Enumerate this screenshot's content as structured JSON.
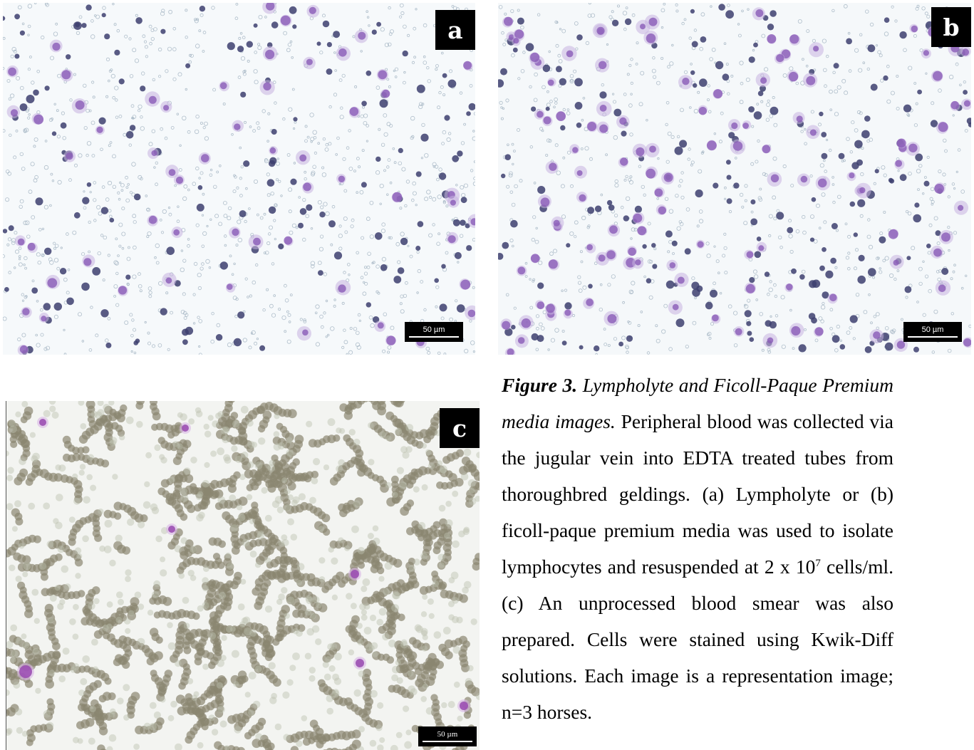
{
  "panels": {
    "a": {
      "letter": "a",
      "scale_bar": "50 µm"
    },
    "b": {
      "letter": "b",
      "scale_bar": "50 µm"
    },
    "c": {
      "letter": "c",
      "scale_bar": "50 µm"
    }
  },
  "caption": {
    "label": "Figure 3.",
    "title": "Lympholyte and Ficoll-Paque Premium media images.",
    "body_part1": "Peripheral blood was collected via the jugular vein into EDTA treated tubes from thoroughbred geldings. (a) Lympholyte or (b) ficoll-paque premium media was used to isolate lymphocytes and resuspended at 2 x 10",
    "exponent": "7",
    "body_part2": "cells/ml. (c) An unprocessed blood smear was also prepared. Cells were stained using Kwik-Diff solutions. Each image is a representation image; n=3 horses."
  },
  "colors": {
    "stain_purple": "#8a5bb8",
    "stain_dark": "#3d3f6e",
    "rbc_blue_grey": "#9fb0bf",
    "smear_olive": "#8a8670",
    "background": "#f7f9fb"
  }
}
